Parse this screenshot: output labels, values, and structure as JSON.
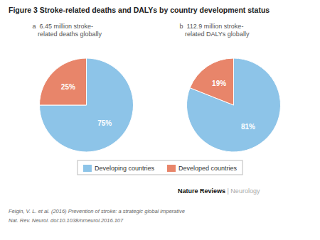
{
  "title": "Figure 3 Stroke-related deaths and DALYs by country development status",
  "annotations": [
    "Nature Reviews",
    " | Neurology",
    "Feigin, V. L. et al. (2016) Prevention of stroke: a strategic global imperative",
    "Nat. Rev. Neurol. doi:10.1038/nrneurol.2016.107"
  ],
  "chart_data": [
    {
      "type": "pie",
      "title": "a  6.45 million stroke-\n   related deaths globally",
      "categories": [
        "Developing countries",
        "Developed countries"
      ],
      "values": [
        75,
        25
      ],
      "value_labels": [
        "75%",
        "25%"
      ],
      "data_labels": true,
      "colors": [
        "#8DC4E8",
        "#E8856A"
      ],
      "legend": "bottom"
    },
    {
      "type": "pie",
      "title": "b  112.9 million stroke-\n   related DALYs globally",
      "categories": [
        "Developing countries",
        "Developed countries"
      ],
      "values": [
        81,
        19
      ],
      "value_labels": [
        "81%",
        "19%"
      ],
      "data_labels": true,
      "colors": [
        "#8DC4E8",
        "#E8856A"
      ]
    }
  ]
}
